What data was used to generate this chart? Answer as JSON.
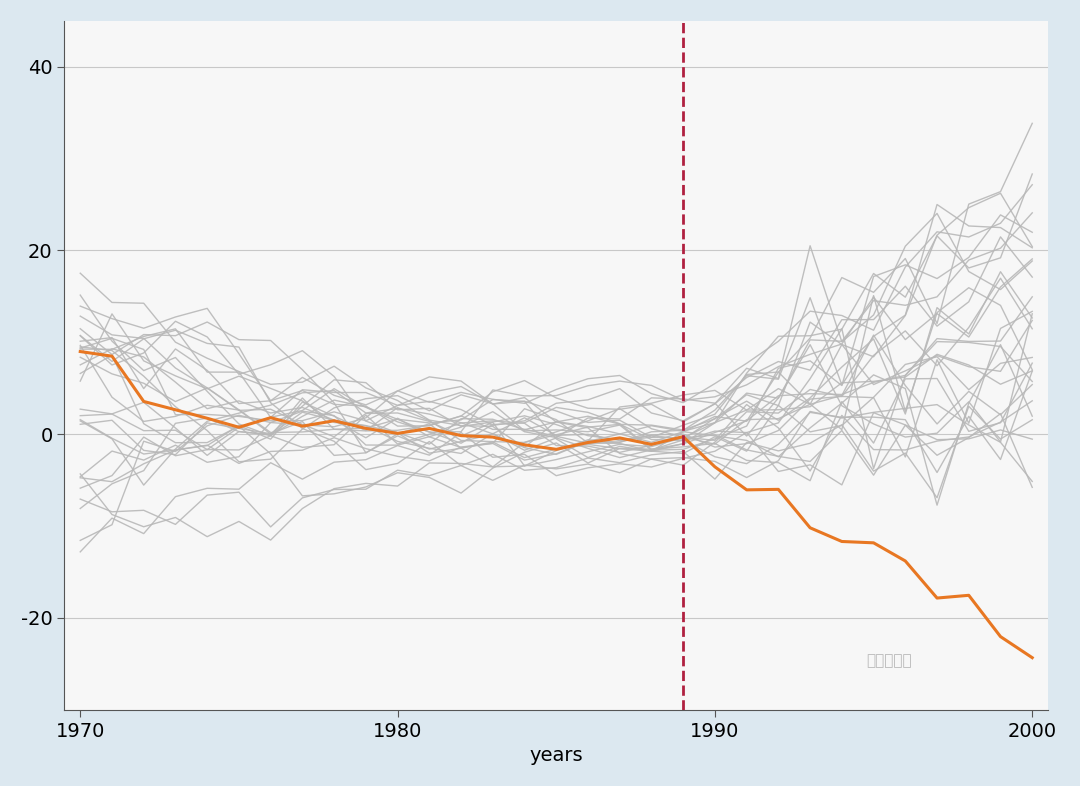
{
  "years_start": 1970,
  "years_end": 2000,
  "intervention_year": 1989,
  "ylim": [
    -30,
    45
  ],
  "yticks": [
    -20,
    0,
    20,
    40
  ],
  "xticks": [
    1970,
    1980,
    1990,
    2000
  ],
  "xlabel": "years",
  "background_color": "#dce8f0",
  "plot_bg_color": "#f7f7f7",
  "grid_color": "#c8c8c8",
  "orange_color": "#E87722",
  "gray_color": "#b8b8b8",
  "dashed_line_color": "#b02040",
  "n_gray_lines": 29,
  "random_seed": 7
}
